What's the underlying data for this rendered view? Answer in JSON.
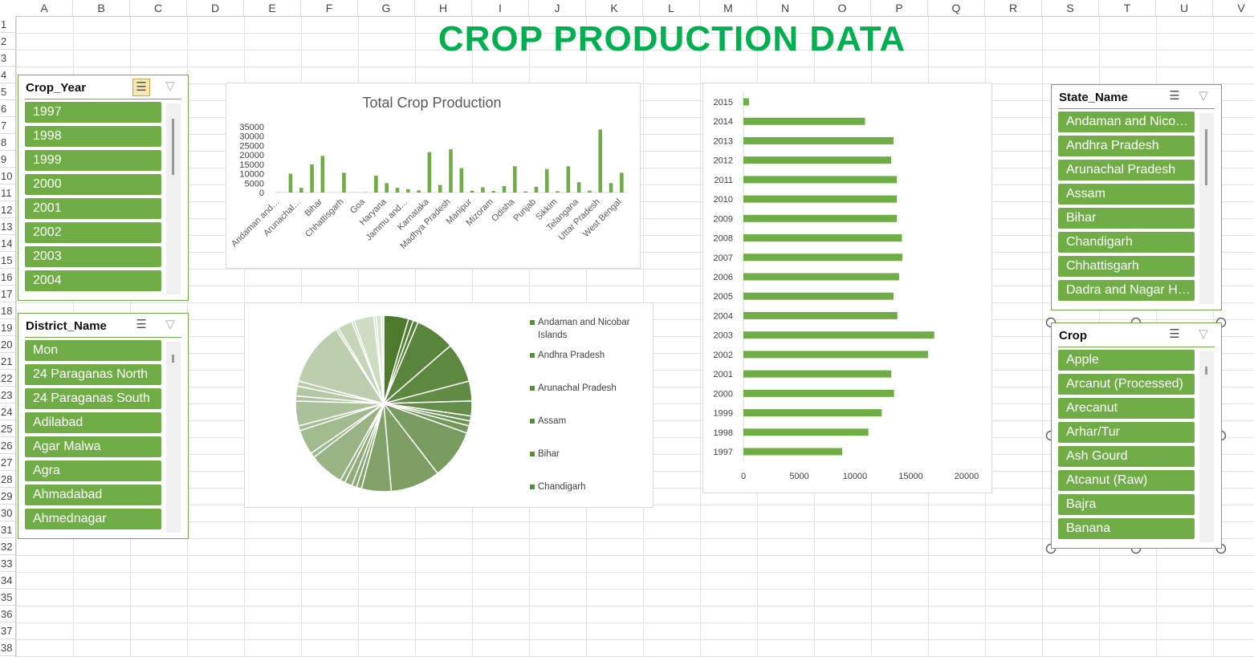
{
  "sheet": {
    "columns": [
      "A",
      "B",
      "C",
      "D",
      "E",
      "F",
      "G",
      "H",
      "I",
      "J",
      "K",
      "L",
      "M",
      "N",
      "O",
      "P",
      "Q",
      "R",
      "S",
      "T",
      "U",
      "V"
    ],
    "rows": [
      1,
      2,
      3,
      4,
      5,
      6,
      7,
      8,
      9,
      10,
      11,
      12,
      13,
      14,
      15,
      16,
      17,
      18,
      19,
      20,
      21,
      22,
      23,
      24,
      25,
      26,
      27,
      28,
      29,
      30,
      31,
      32,
      33,
      34,
      35,
      36,
      37,
      38
    ]
  },
  "title": "CROP PRODUCTION DATA",
  "slicers": [
    {
      "header": "Crop_Year",
      "items": [
        "1997",
        "1998",
        "1999",
        "2000",
        "2001",
        "2002",
        "2003",
        "2004"
      ]
    },
    {
      "header": "District_Name",
      "items": [
        "Mon",
        "24 Paraganas North",
        "24 Paraganas South",
        "Adilabad",
        "Agar Malwa",
        "Agra",
        "Ahmadabad",
        "Ahmednagar"
      ]
    },
    {
      "header": "State_Name",
      "items": [
        "Andaman and Nico…",
        "Andhra Pradesh",
        "Arunachal Pradesh",
        "Assam",
        "Bihar",
        "Chandigarh",
        "Chhattisgarh",
        "Dadra and Nagar H…"
      ]
    },
    {
      "header": "Crop",
      "items": [
        "Apple",
        "Arcanut (Processed)",
        "Arecanut",
        "Arhar/Tur",
        "Ash Gourd",
        "Atcanut (Raw)",
        "Bajra",
        "Banana"
      ]
    }
  ],
  "chart_data": [
    {
      "type": "bar",
      "title": "Total Crop Production",
      "color": "#70ad47",
      "categories": [
        "Andaman and…",
        null,
        "Arunachal…",
        null,
        "Bihar",
        null,
        "Chhattisgarh",
        null,
        "Goa",
        null,
        "Haryana",
        null,
        "Jammu and…",
        null,
        "Karnataka",
        null,
        "Madhya Pradesh",
        null,
        "Manipur",
        null,
        "Mizoram",
        null,
        "Odisha",
        null,
        "Punjab",
        null,
        "Sikkim",
        null,
        "Telangana",
        null,
        "Uttar Pradesh",
        null,
        "West Bengal"
      ],
      "values": [
        100,
        10000,
        2500,
        15000,
        19500,
        0,
        10500,
        50,
        200,
        9000,
        5000,
        2500,
        1800,
        1200,
        21500,
        4000,
        23000,
        13000,
        1000,
        2800,
        800,
        3500,
        14000,
        600,
        3000,
        12500,
        700,
        14000,
        5500,
        1000,
        33500,
        5000,
        10500
      ],
      "ylim": [
        0,
        35000
      ],
      "yticks": [
        0,
        5000,
        10000,
        15000,
        20000,
        25000,
        30000,
        35000
      ]
    },
    {
      "type": "pie",
      "color_range": [
        "#4b7a2b",
        "#dbe6d2"
      ],
      "legend_color": "#5a8f3a",
      "categories": [
        "Andaman and Nicobar Islands",
        "Andhra Pradesh",
        "Arunachal Pradesh",
        "Assam",
        "Bihar",
        "Chandigarh",
        null,
        null,
        null,
        null,
        null,
        null,
        null,
        null,
        null,
        null,
        null,
        null,
        null,
        null,
        null,
        null,
        null,
        null,
        null,
        null,
        null,
        null,
        null,
        null,
        null,
        null,
        null
      ],
      "values": [
        5,
        1,
        1,
        8,
        8,
        4,
        3,
        1,
        1,
        1.5,
        10,
        10,
        6,
        1,
        1,
        1.5,
        1,
        7,
        1,
        5,
        1,
        5,
        1,
        2,
        1,
        13,
        0.5,
        3,
        0.5,
        4,
        0.5,
        1,
        0.5
      ]
    },
    {
      "type": "hbar",
      "color": "#70ad47",
      "categories": [
        "1997",
        "1998",
        "1999",
        "2000",
        "2001",
        "2002",
        "2003",
        "2004",
        "2005",
        "2006",
        "2007",
        "2008",
        "2009",
        "2010",
        "2011",
        "2012",
        "2013",
        "2014",
        "2015"
      ],
      "values": [
        8850,
        11200,
        12400,
        13500,
        13250,
        16550,
        17100,
        13800,
        13450,
        13950,
        14250,
        14200,
        13750,
        13750,
        13750,
        13250,
        13450,
        10900,
        500
      ],
      "xlim": [
        0,
        20000
      ],
      "xticks": [
        0,
        5000,
        10000,
        15000,
        20000
      ]
    }
  ]
}
